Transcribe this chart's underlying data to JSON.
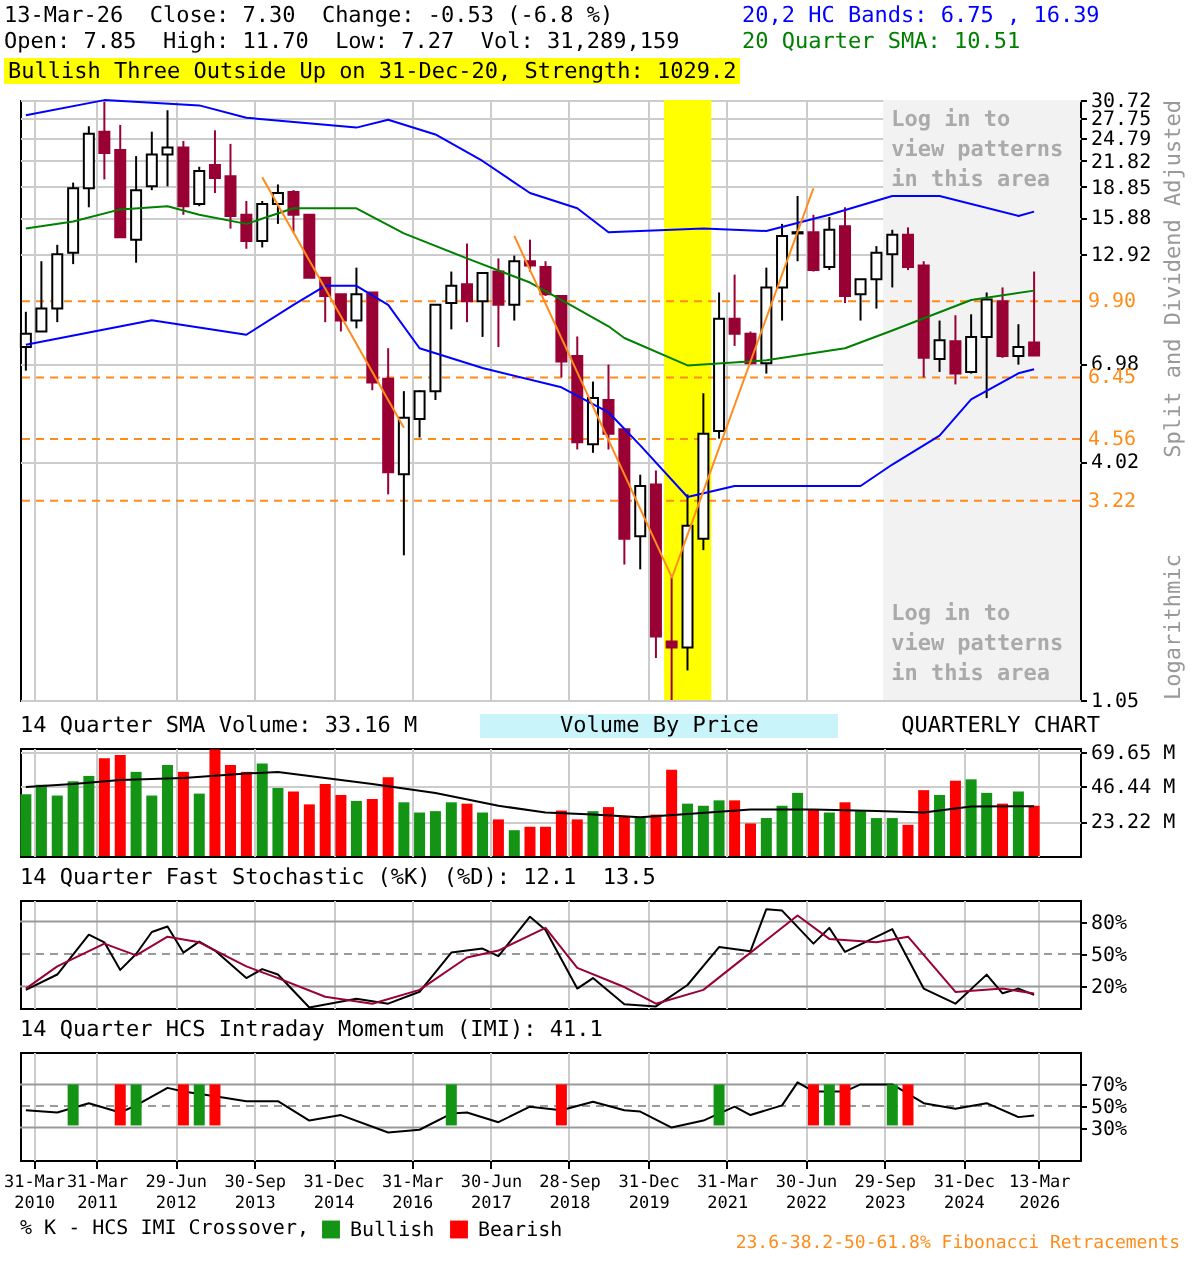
{
  "chart_data": [
    {
      "type": "candlestick",
      "title": "13-Mar-26  Close: 7.30  Change: -0.53 (-6.8 %)",
      "subtitle": "Open: 7.85  High: 11.70  Low: 7.27  Vol: 31,289,159",
      "ylabel": "Split and Dividend Adjusted",
      "annotations": [
        "20,2 HC Bands: 6.75 , 16.39",
        "20 Quarter SMA: 10.51",
        "Bullish Three Outside Up on 31-Dec-20, Strength: 1029.2",
        "Logarithmic"
      ],
      "x": [
        "2010-02-14",
        "2010-05-15",
        "2010-08-15",
        "2010-11-15",
        "2011-02-14",
        "2011-05-15",
        "2011-08-15",
        "2011-11-15",
        "2012-02-14",
        "2012-05-15",
        "2012-08-15",
        "2012-11-15",
        "2013-02-14",
        "2013-05-15",
        "2013-08-15",
        "2013-11-15",
        "2014-02-14",
        "2014-05-15",
        "2014-08-15",
        "2014-11-15",
        "2015-02-14",
        "2015-05-15",
        "2015-08-15",
        "2015-11-15",
        "2016-02-14",
        "2016-05-15",
        "2016-08-15",
        "2016-11-15",
        "2017-02-14",
        "2017-05-15",
        "2017-08-15",
        "2017-11-15",
        "2018-02-14",
        "2018-05-15",
        "2018-08-15",
        "2018-11-15",
        "2019-02-14",
        "2019-05-15",
        "2019-08-15",
        "2019-11-15",
        "2020-02-14",
        "2020-05-15",
        "2020-08-15",
        "2020-11-15",
        "2021-02-14",
        "2021-05-15",
        "2021-08-15",
        "2021-11-15",
        "2022-02-14",
        "2022-05-15",
        "2022-08-15",
        "2022-11-15",
        "2023-02-14",
        "2023-05-15",
        "2023-08-15",
        "2023-11-15",
        "2024-02-14",
        "2024-05-15",
        "2024-08-15",
        "2024-11-15",
        "2025-02-14",
        "2025-05-15",
        "2025-08-15",
        "2025-11-15",
        "2026-02-14"
      ],
      "ohlc": [
        [
          7.65,
          9.33,
          6.7,
          8.25
        ],
        [
          8.35,
          12.4,
          8.35,
          9.5
        ],
        [
          9.5,
          13.6,
          8.8,
          12.9
        ],
        [
          13.0,
          19.3,
          12.2,
          18.7
        ],
        [
          18.7,
          26.5,
          16.8,
          25.4
        ],
        [
          25.7,
          30.4,
          19.65,
          22.8
        ],
        [
          23.2,
          26.7,
          14.2,
          14.2
        ],
        [
          14.0,
          22.4,
          12.3,
          18.5
        ],
        [
          18.9,
          25.7,
          18.5,
          22.6
        ],
        [
          22.6,
          29.0,
          18.9,
          23.5
        ],
        [
          23.5,
          24.4,
          16.1,
          16.9
        ],
        [
          17.1,
          21.1,
          16.9,
          20.6
        ],
        [
          21.3,
          25.9,
          18.2,
          19.8
        ],
        [
          20.0,
          24.0,
          14.9,
          16.0
        ],
        [
          16.1,
          17.4,
          13.3,
          13.9
        ],
        [
          13.9,
          17.4,
          13.4,
          17.1
        ],
        [
          17.1,
          19.1,
          15.3,
          18.2
        ],
        [
          18.3,
          18.5,
          14.6,
          16.1
        ],
        [
          16.1,
          16.1,
          11.3,
          11.3
        ],
        [
          11.3,
          11.3,
          8.8,
          10.2
        ],
        [
          10.3,
          10.3,
          8.35,
          8.88
        ],
        [
          8.88,
          11.96,
          8.5,
          10.3
        ],
        [
          10.4,
          10.4,
          6.0,
          6.27
        ],
        [
          6.4,
          7.6,
          3.34,
          3.78
        ],
        [
          3.74,
          5.97,
          2.37,
          5.14
        ],
        [
          5.1,
          6.0,
          4.6,
          5.97
        ],
        [
          5.97,
          9.7,
          5.68,
          9.7
        ],
        [
          9.8,
          11.7,
          8.45,
          10.8
        ],
        [
          10.9,
          13.7,
          8.8,
          9.9
        ],
        [
          9.9,
          11.6,
          8.1,
          11.6
        ],
        [
          11.7,
          12.6,
          7.65,
          9.7
        ],
        [
          9.7,
          12.8,
          8.88,
          12.4
        ],
        [
          12.4,
          14.0,
          11.7,
          12.1
        ],
        [
          12.0,
          12.4,
          10.2,
          10.3
        ],
        [
          10.2,
          10.2,
          6.45,
          7.05
        ],
        [
          7.28,
          8.12,
          4.3,
          4.48
        ],
        [
          4.43,
          6.3,
          4.22,
          5.74
        ],
        [
          5.68,
          6.93,
          4.3,
          4.7
        ],
        [
          4.82,
          4.82,
          2.25,
          2.6
        ],
        [
          2.64,
          3.73,
          2.19,
          3.5
        ],
        [
          3.53,
          3.82,
          1.33,
          1.5
        ],
        [
          1.46,
          2.1,
          1.05,
          1.41
        ],
        [
          1.41,
          3.34,
          1.24,
          2.8
        ],
        [
          2.6,
          5.9,
          2.44,
          4.7
        ],
        [
          4.77,
          10.4,
          4.57,
          8.97
        ],
        [
          8.97,
          11.5,
          7.7,
          8.25
        ],
        [
          8.25,
          8.35,
          6.93,
          6.98
        ],
        [
          6.98,
          11.96,
          6.59,
          10.7
        ],
        [
          10.7,
          15.3,
          8.88,
          14.3
        ],
        [
          14.5,
          17.9,
          12.4,
          14.6
        ],
        [
          14.6,
          16.1,
          11.7,
          11.8
        ],
        [
          12.0,
          15.9,
          11.8,
          14.8
        ],
        [
          15.1,
          16.8,
          9.8,
          10.2
        ],
        [
          10.3,
          11.2,
          8.88,
          11.2
        ],
        [
          11.2,
          13.5,
          9.5,
          13.0
        ],
        [
          12.9,
          14.8,
          10.7,
          14.4
        ],
        [
          14.4,
          15.0,
          11.8,
          12.0
        ],
        [
          12.1,
          12.4,
          6.45,
          7.2
        ],
        [
          7.15,
          8.88,
          6.65,
          7.95
        ],
        [
          7.9,
          9.15,
          6.2,
          6.59
        ],
        [
          6.65,
          9.2,
          6.59,
          8.1
        ],
        [
          8.1,
          10.4,
          5.74,
          10.0
        ],
        [
          9.9,
          10.7,
          7.2,
          7.28
        ],
        [
          7.28,
          8.7,
          6.93,
          7.65
        ],
        [
          7.85,
          11.7,
          7.27,
          7.3
        ]
      ],
      "colors": [
        "#ffffff",
        "#ffffff",
        "#ffffff",
        "#ffffff",
        "#ffffff",
        "#990033",
        "#990033",
        "#ffffff",
        "#ffffff",
        "#ffffff",
        "#990033",
        "#ffffff",
        "#990033",
        "#990033",
        "#990033",
        "#ffffff",
        "#ffffff",
        "#990033",
        "#990033",
        "#990033",
        "#990033",
        "#ffffff",
        "#990033",
        "#990033",
        "#ffffff",
        "#ffffff",
        "#ffffff",
        "#ffffff",
        "#990033",
        "#ffffff",
        "#990033",
        "#ffffff",
        "#990033",
        "#990033",
        "#990033",
        "#990033",
        "#ffffff",
        "#990033",
        "#990033",
        "#ffffff",
        "#990033",
        "#990033",
        "#ffffff",
        "#ffffff",
        "#ffffff",
        "#990033",
        "#990033",
        "#ffffff",
        "#ffffff",
        "#ffffff",
        "#990033",
        "#ffffff",
        "#990033",
        "#ffffff",
        "#ffffff",
        "#ffffff",
        "#990033",
        "#990033",
        "#ffffff",
        "#990033",
        "#ffffff",
        "#ffffff",
        "#990033",
        "#ffffff",
        "#990033"
      ],
      "series": [
        {
          "type": "line",
          "color": "#0000ff",
          "x": [
            "2010-02-14",
            "2011-05-15",
            "2012-11-15",
            "2013-08-15",
            "2015-05-15",
            "2015-11-15",
            "2016-08-15",
            "2017-05-15",
            "2018-02-14",
            "2018-11-15",
            "2019-05-15",
            "2020-11-15",
            "2021-11-15",
            "2022-11-15",
            "2023-11-15",
            "2024-08-15",
            "2025-11-15",
            "2026-02-14"
          ],
          "values": [
            28.2,
            30.7,
            29.8,
            27.8,
            26.3,
            27.5,
            25.3,
            21.8,
            18.2,
            16.7,
            14.6,
            14.9,
            14.7,
            16.1,
            17.9,
            17.9,
            16.0,
            16.39
          ]
        },
        {
          "type": "line",
          "color": "#0000ff",
          "x": [
            "2010-02-14",
            "2012-02-14",
            "2013-08-15",
            "2014-05-15",
            "2014-11-15",
            "2015-05-15",
            "2015-11-15",
            "2016-05-15",
            "2017-05-15",
            "2018-08-15",
            "2019-05-15",
            "2019-11-15",
            "2020-08-15",
            "2021-05-15",
            "2023-05-15",
            "2023-11-15",
            "2024-08-15",
            "2025-02-14",
            "2025-11-15",
            "2026-02-14"
          ],
          "values": [
            7.75,
            8.9,
            8.2,
            9.7,
            10.8,
            10.8,
            9.7,
            7.6,
            6.8,
            6.1,
            5.3,
            4.4,
            3.29,
            3.5,
            3.5,
            3.95,
            4.65,
            5.7,
            6.6,
            6.75
          ]
        },
        {
          "type": "line",
          "color": "#008000",
          "x": [
            "2010-02-14",
            "2010-11-15",
            "2011-08-15",
            "2012-05-15",
            "2012-11-15",
            "2013-08-15",
            "2014-05-15",
            "2015-05-15",
            "2016-02-14",
            "2017-02-14",
            "2018-02-14",
            "2018-08-15",
            "2019-05-15",
            "2019-08-15",
            "2020-08-15",
            "2021-11-15",
            "2023-02-14",
            "2023-11-15",
            "2025-02-14",
            "2026-02-14"
          ],
          "values": [
            14.9,
            15.5,
            16.6,
            16.9,
            16.1,
            15.3,
            16.7,
            16.7,
            14.5,
            12.6,
            11.0,
            9.97,
            8.6,
            8.05,
            6.9,
            7.1,
            7.6,
            8.4,
            9.97,
            10.51
          ]
        },
        {
          "type": "line",
          "color": "#ff8c1a",
          "x": [
            "2013-11-15",
            "2016-02-14"
          ],
          "values": [
            19.9,
            4.86
          ]
        },
        {
          "type": "line",
          "color": "#ff8c1a",
          "x": [
            "2017-11-15",
            "2020-05-15"
          ],
          "values": [
            14.3,
            2.1
          ]
        },
        {
          "type": "line",
          "color": "#ff8c1a",
          "x": [
            "2020-05-15",
            "2022-08-15"
          ],
          "values": [
            2.08,
            18.7
          ]
        }
      ],
      "ref_lines": [
        {
          "axis": "y",
          "value": 9.9,
          "label": "9.90",
          "color": "#ff8c1a",
          "line_style": "dashed"
        },
        {
          "axis": "y",
          "value": 6.45,
          "label": "6.45",
          "color": "#ff8c1a",
          "line_style": "dashed"
        },
        {
          "axis": "y",
          "value": 4.56,
          "label": "4.56",
          "color": "#ff8c1a",
          "line_style": "dashed"
        },
        {
          "axis": "y",
          "value": 3.22,
          "label": "3.22",
          "color": "#ff8c1a",
          "line_style": "dashed"
        }
      ],
      "bands": [
        {
          "axis": "x",
          "from": "2020-04-01",
          "to": "2020-12-31",
          "color": "#ffff00"
        },
        {
          "axis": "x",
          "from": "2023-09-23",
          "to": "2026-11-07",
          "color": "#f2f2f2",
          "label": "Log in to view patterns in this area"
        }
      ],
      "xlim": [
        "2010-01-11",
        "2026-11-07"
      ],
      "xticks": [
        {
          "value": "2010-03-31",
          "label": null
        },
        {
          "value": "2011-03-31",
          "label": null
        },
        {
          "value": "2012-06-29",
          "label": null
        },
        {
          "value": "2013-09-30",
          "label": null
        },
        {
          "value": "2014-12-31",
          "label": null
        },
        {
          "value": "2016-03-31",
          "label": null
        },
        {
          "value": "2017-06-30",
          "label": null
        },
        {
          "value": "2018-09-28",
          "label": null
        },
        {
          "value": "2019-12-31",
          "label": null
        },
        {
          "value": "2021-03-31",
          "label": null
        },
        {
          "value": "2022-06-30",
          "label": null
        },
        {
          "value": "2023-09-29",
          "label": null
        },
        {
          "value": "2024-12-31",
          "label": null
        },
        {
          "value": "2026-03-13",
          "label": null
        }
      ],
      "ylim": [
        1.05,
        30.72
      ],
      "yticks": [
        30.72,
        27.75,
        24.79,
        21.82,
        18.85,
        15.88,
        12.92,
        6.98,
        4.02,
        1.05
      ],
      "log": "y",
      "grid": true,
      "tick_labels": "y"
    },
    {
      "type": "bar",
      "title": "14 Quarter SMA Volume: 33.16 M",
      "annotations": [
        "Volume By Price",
        "QUARTERLY CHART"
      ],
      "x": [
        "2010-02-14",
        "2010-05-15",
        "2010-08-15",
        "2010-11-15",
        "2011-02-14",
        "2011-05-15",
        "2011-08-15",
        "2011-11-15",
        "2012-02-14",
        "2012-05-15",
        "2012-08-15",
        "2012-11-15",
        "2013-02-14",
        "2013-05-15",
        "2013-08-15",
        "2013-11-15",
        "2014-02-14",
        "2014-05-15",
        "2014-08-15",
        "2014-11-15",
        "2015-02-14",
        "2015-05-15",
        "2015-08-15",
        "2015-11-15",
        "2016-02-14",
        "2016-05-15",
        "2016-08-15",
        "2016-11-15",
        "2017-02-14",
        "2017-05-15",
        "2017-08-15",
        "2017-11-15",
        "2018-02-14",
        "2018-05-15",
        "2018-08-15",
        "2018-11-15",
        "2019-02-14",
        "2019-05-15",
        "2019-08-15",
        "2019-11-15",
        "2020-02-14",
        "2020-05-15",
        "2020-08-15",
        "2020-11-15",
        "2021-02-14",
        "2021-05-15",
        "2021-08-15",
        "2021-11-15",
        "2022-02-14",
        "2022-05-15",
        "2022-08-15",
        "2022-11-15",
        "2023-02-14",
        "2023-05-15",
        "2023-08-15",
        "2023-11-15",
        "2024-02-14",
        "2024-05-15",
        "2024-08-15",
        "2024-11-15",
        "2025-02-14",
        "2025-05-15",
        "2025-08-15",
        "2025-11-15",
        "2026-02-14"
      ],
      "series": [
        {
          "type": "bar",
          "values": [
            41.2,
            47.5,
            40.3,
            49.8,
            53.4,
            65.2,
            67.4,
            56.1,
            40.3,
            60.6,
            56.1,
            41.6,
            71,
            60.6,
            56.1,
            61.6,
            45.3,
            43.0,
            34.4,
            48.0,
            40.7,
            36.7,
            38.0,
            52.5,
            35.8,
            29.0,
            29.9,
            35.8,
            34.9,
            29.0,
            24.4,
            17.2,
            19.5,
            19.5,
            30.3,
            24.4,
            29.9,
            32.6,
            26.7,
            25.8,
            27.6,
            57.5,
            34.9,
            33.5,
            37.1,
            37.1,
            21.7,
            25.3,
            33.5,
            42.1,
            31.2,
            29.0,
            35.8,
            29.9,
            25.3,
            25.3,
            20.8,
            43.9,
            40.7,
            50.2,
            51.1,
            42.1,
            34.9,
            43.0,
            33.5
          ],
          "colors": [
            "#149414",
            "#149414",
            "#149414",
            "#149414",
            "#149414",
            "#ff0000",
            "#ff0000",
            "#149414",
            "#149414",
            "#149414",
            "#ff0000",
            "#149414",
            "#ff0000",
            "#ff0000",
            "#ff0000",
            "#149414",
            "#149414",
            "#ff0000",
            "#ff0000",
            "#ff0000",
            "#ff0000",
            "#149414",
            "#ff0000",
            "#ff0000",
            "#149414",
            "#149414",
            "#149414",
            "#149414",
            "#ff0000",
            "#149414",
            "#ff0000",
            "#149414",
            "#ff0000",
            "#ff0000",
            "#ff0000",
            "#ff0000",
            "#149414",
            "#ff0000",
            "#ff0000",
            "#149414",
            "#ff0000",
            "#ff0000",
            "#149414",
            "#149414",
            "#149414",
            "#ff0000",
            "#ff0000",
            "#149414",
            "#149414",
            "#149414",
            "#ff0000",
            "#149414",
            "#ff0000",
            "#149414",
            "#149414",
            "#149414",
            "#ff0000",
            "#ff0000",
            "#149414",
            "#ff0000",
            "#149414",
            "#149414",
            "#ff0000",
            "#149414",
            "#ff0000"
          ]
        },
        {
          "type": "line",
          "color": "#000000",
          "x": [
            "2010-02-14",
            "2010-11-15",
            "2011-08-15",
            "2012-08-15",
            "2013-08-15",
            "2014-02-14",
            "2014-11-15",
            "2015-08-15",
            "2016-08-15",
            "2017-08-15",
            "2018-05-15",
            "2019-02-14",
            "2019-11-15",
            "2020-08-15",
            "2021-08-15",
            "2022-08-15",
            "2023-08-15",
            "2024-05-15",
            "2025-02-14",
            "2026-02-14"
          ],
          "values": [
            46,
            48,
            50.7,
            52,
            55,
            56,
            52,
            48,
            42,
            33.5,
            29,
            27.6,
            25.8,
            28,
            31,
            31,
            30,
            29,
            33,
            33.16
          ]
        }
      ],
      "xlim": [
        "2010-01-11",
        "2026-11-07"
      ],
      "xticks": [
        {
          "value": "2010-03-31",
          "label": null
        },
        {
          "value": "2011-03-31",
          "label": null
        },
        {
          "value": "2012-06-29",
          "label": null
        },
        {
          "value": "2013-09-30",
          "label": null
        },
        {
          "value": "2014-12-31",
          "label": null
        },
        {
          "value": "2016-03-31",
          "label": null
        },
        {
          "value": "2017-06-30",
          "label": null
        },
        {
          "value": "2018-09-28",
          "label": null
        },
        {
          "value": "2019-12-31",
          "label": null
        },
        {
          "value": "2021-03-31",
          "label": null
        },
        {
          "value": "2022-06-30",
          "label": null
        },
        {
          "value": "2023-09-29",
          "label": null
        },
        {
          "value": "2024-12-31",
          "label": null
        },
        {
          "value": "2026-03-13",
          "label": null
        }
      ],
      "ylim": [
        0,
        72
      ],
      "yticks": [
        {
          "value": 23.22,
          "label": "23.22 M"
        },
        {
          "value": 46.44,
          "label": "46.44 M"
        },
        {
          "value": 69.65,
          "label": "69.65 M"
        }
      ],
      "grid": true,
      "tick_labels": "y"
    },
    {
      "type": "line",
      "title": "14 Quarter Fast Stochastic (%K) (%D): 12.1  13.5",
      "series": [
        {
          "color": "#000000",
          "x": [
            "2010-02-14",
            "2010-08-15",
            "2011-02-14",
            "2011-05-15",
            "2011-08-15",
            "2011-11-15",
            "2012-02-14",
            "2012-05-15",
            "2012-08-15",
            "2012-11-15",
            "2013-02-14",
            "2013-08-15",
            "2013-11-15",
            "2014-02-14",
            "2014-08-15",
            "2015-05-15",
            "2015-11-15",
            "2016-05-15",
            "2016-11-15",
            "2017-05-15",
            "2017-08-15",
            "2018-02-14",
            "2018-05-15",
            "2018-11-15",
            "2019-02-14",
            "2019-08-15",
            "2020-02-14",
            "2020-08-15",
            "2021-02-14",
            "2021-08-15",
            "2021-11-15",
            "2022-02-14",
            "2022-08-15",
            "2022-11-15",
            "2023-02-14",
            "2023-11-15",
            "2024-05-15",
            "2024-11-15",
            "2025-05-15",
            "2025-08-15",
            "2025-11-15",
            "2026-02-14"
          ],
          "values": [
            16.8,
            31,
            67.9,
            60.8,
            35.3,
            50,
            70.4,
            75.5,
            51.3,
            61.5,
            53.2,
            27.7,
            36,
            31,
            0.5,
            8.5,
            4,
            15,
            51.3,
            55,
            48,
            84.5,
            72.3,
            18,
            27.7,
            3.4,
            1.5,
            21.3,
            56.4,
            52.6,
            91.5,
            90.2,
            59.6,
            74.2,
            51.9,
            73,
            18,
            4,
            30.9,
            13.6,
            18,
            12.1
          ]
        },
        {
          "color": "#990033",
          "x": [
            "2010-02-14",
            "2010-08-15",
            "2011-05-15",
            "2011-11-15",
            "2012-05-15",
            "2012-11-15",
            "2013-08-15",
            "2014-02-14",
            "2014-11-15",
            "2015-08-15",
            "2016-05-15",
            "2017-02-14",
            "2017-08-15",
            "2018-05-15",
            "2018-11-15",
            "2019-08-15",
            "2020-02-14",
            "2020-11-15",
            "2021-08-15",
            "2022-05-15",
            "2022-11-15",
            "2023-08-15",
            "2024-02-14",
            "2024-11-15",
            "2025-08-15",
            "2026-02-14"
          ],
          "values": [
            18,
            38.5,
            59.6,
            48.7,
            66,
            60.8,
            38.5,
            27.7,
            10.4,
            4,
            16.8,
            46.8,
            53.2,
            74.2,
            37.2,
            19.4,
            4,
            16.8,
            51.3,
            85.7,
            64,
            60.8,
            66,
            14.9,
            18,
            13.5
          ]
        }
      ],
      "ref_lines": [
        {
          "axis": "y",
          "value": 20,
          "color": "#999999"
        },
        {
          "axis": "y",
          "value": 50,
          "color": "#999999",
          "line_style": "dashed"
        },
        {
          "axis": "y",
          "value": 80,
          "color": "#999999"
        }
      ],
      "xlim": [
        "2010-01-11",
        "2026-11-07"
      ],
      "xticks": [
        {
          "value": "2010-03-31",
          "label": null
        },
        {
          "value": "2011-03-31",
          "label": null
        },
        {
          "value": "2012-06-29",
          "label": null
        },
        {
          "value": "2013-09-30",
          "label": null
        },
        {
          "value": "2014-12-31",
          "label": null
        },
        {
          "value": "2016-03-31",
          "label": null
        },
        {
          "value": "2017-06-30",
          "label": null
        },
        {
          "value": "2018-09-28",
          "label": null
        },
        {
          "value": "2019-12-31",
          "label": null
        },
        {
          "value": "2021-03-31",
          "label": null
        },
        {
          "value": "2022-06-30",
          "label": null
        },
        {
          "value": "2023-09-29",
          "label": null
        },
        {
          "value": "2024-12-31",
          "label": null
        },
        {
          "value": "2026-03-13",
          "label": null
        }
      ],
      "ylim": [
        0,
        100
      ],
      "yticks": [
        {
          "value": 20,
          "label": "20%"
        },
        {
          "value": 50,
          "label": "50%"
        },
        {
          "value": 80,
          "label": "80%"
        }
      ],
      "grid": "x",
      "tick_labels": "y"
    },
    {
      "type": "line",
      "title": "14 Quarter HCS Intraday Momentum (IMI): 41.1",
      "legend_title": "% K - HCS IMI Crossover,",
      "annotations": [
        "23.6-38.2-50-61.8% Fibonacci Retracements"
      ],
      "series": [
        {
          "color": "#000000",
          "x": [
            "2010-02-14",
            "2010-08-15",
            "2011-02-14",
            "2011-08-15",
            "2011-11-15",
            "2012-05-15",
            "2012-08-15",
            "2013-02-14",
            "2013-08-15",
            "2014-02-14",
            "2014-08-15",
            "2015-02-14",
            "2015-11-15",
            "2016-05-15",
            "2016-11-15",
            "2017-02-14",
            "2017-08-15",
            "2018-02-14",
            "2018-08-15",
            "2019-02-14",
            "2019-08-15",
            "2019-11-15",
            "2020-05-15",
            "2020-11-15",
            "2021-05-15",
            "2021-08-15",
            "2022-02-14",
            "2022-05-15",
            "2022-08-15",
            "2023-02-14",
            "2023-05-15",
            "2023-11-15",
            "2024-05-15",
            "2024-11-15",
            "2025-05-15",
            "2025-11-15",
            "2026-02-14"
          ],
          "values": [
            46,
            44,
            52.6,
            44,
            50.6,
            66.8,
            63.5,
            59,
            54.5,
            54.5,
            36.5,
            41.6,
            25.5,
            28,
            43,
            44,
            35,
            49.4,
            46,
            53.9,
            46,
            44.8,
            30,
            36.5,
            49.4,
            41.6,
            50.6,
            71.9,
            63.5,
            63.5,
            70,
            70,
            52.6,
            47.4,
            52.6,
            39.7,
            41.1
          ]
        },
        {
          "type": "bar",
          "name": "Bullish",
          "color": "#149414",
          "x": [
            "2010-11-15",
            "2011-11-15",
            "2012-11-15",
            "2016-11-15",
            "2021-02-14",
            "2022-11-15",
            "2023-11-15"
          ],
          "base": [
            32,
            32,
            32,
            32,
            32,
            32,
            32
          ],
          "values": [
            38,
            38,
            38,
            38,
            38,
            38,
            38
          ]
        },
        {
          "type": "bar",
          "name": "Bearish",
          "color": "#ff0000",
          "x": [
            "2011-08-15",
            "2012-08-15",
            "2013-02-14",
            "2018-08-15",
            "2022-08-15",
            "2023-02-14",
            "2024-02-14"
          ],
          "base": [
            32,
            32,
            32,
            32,
            32,
            32,
            32
          ],
          "values": [
            38,
            38,
            38,
            38,
            38,
            38,
            38
          ]
        }
      ],
      "ref_lines": [
        {
          "axis": "y",
          "value": 30,
          "color": "#999999"
        },
        {
          "axis": "y",
          "value": 50,
          "color": "#999999",
          "line_style": "dashed"
        },
        {
          "axis": "y",
          "value": 70,
          "color": "#999999"
        }
      ],
      "xlim": [
        "2010-01-11",
        "2026-11-07"
      ],
      "xticks": [
        {
          "value": "2010-03-31",
          "label": "31-Mar 2010"
        },
        {
          "value": "2011-03-31",
          "label": "31-Mar 2011"
        },
        {
          "value": "2012-06-29",
          "label": "29-Jun 2012"
        },
        {
          "value": "2013-09-30",
          "label": "30-Sep 2013"
        },
        {
          "value": "2014-12-31",
          "label": "31-Dec 2014"
        },
        {
          "value": "2016-03-31",
          "label": "31-Mar 2016"
        },
        {
          "value": "2017-06-30",
          "label": "30-Jun 2017"
        },
        {
          "value": "2018-09-28",
          "label": "28-Sep 2018"
        },
        {
          "value": "2019-12-31",
          "label": "31-Dec 2019"
        },
        {
          "value": "2021-03-31",
          "label": "31-Mar 2021"
        },
        {
          "value": "2022-06-30",
          "label": "30-Jun 2022"
        },
        {
          "value": "2023-09-29",
          "label": "29-Sep 2023"
        },
        {
          "value": "2024-12-31",
          "label": "31-Dec 2024"
        },
        {
          "value": "2026-03-13",
          "label": "13-Mar 2026"
        }
      ],
      "ylim": [
        0,
        100
      ],
      "yticks": [
        {
          "value": 30,
          "label": "30%"
        },
        {
          "value": 50,
          "label": "50%"
        },
        {
          "value": 70,
          "label": "70%"
        }
      ],
      "grid": "x",
      "legend": "bottom"
    }
  ]
}
